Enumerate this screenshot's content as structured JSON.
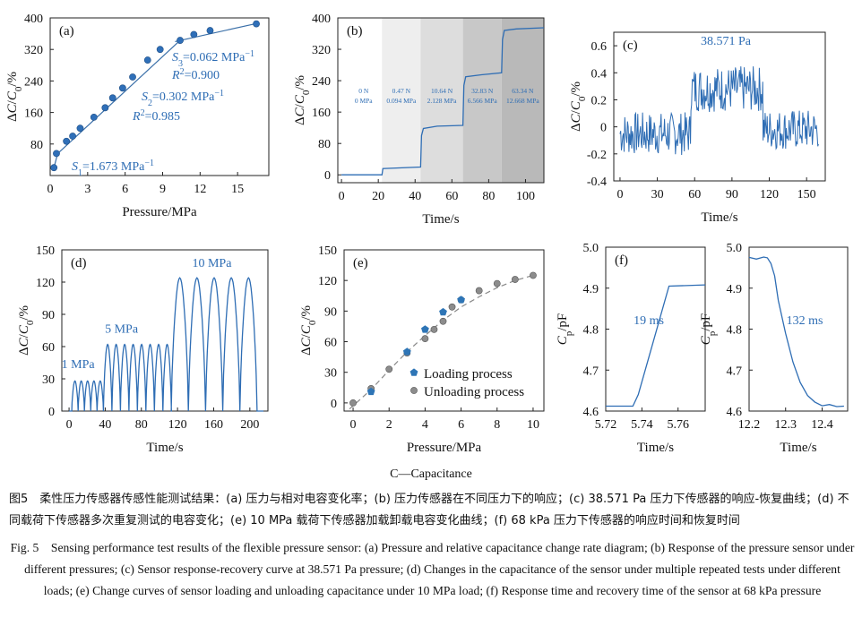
{
  "panels": [
    {
      "id": "a",
      "chart_data": {
        "type": "scatter",
        "panel_label": "(a)",
        "xlabel": "Pressure/MPa",
        "ylabel": "ΔC/C0/%",
        "xlim": [
          0,
          17.5
        ],
        "ylim": [
          0,
          400
        ],
        "xticks": [
          0,
          3,
          6,
          9,
          12,
          15
        ],
        "yticks": [
          80,
          160,
          240,
          320,
          400
        ],
        "points": [
          [
            0.3,
            20
          ],
          [
            0.5,
            56
          ],
          [
            1.3,
            87
          ],
          [
            1.8,
            100
          ],
          [
            2.4,
            120
          ],
          [
            3.5,
            148
          ],
          [
            4.4,
            172
          ],
          [
            5.0,
            197
          ],
          [
            5.8,
            222
          ],
          [
            6.6,
            250
          ],
          [
            7.8,
            293
          ],
          [
            8.8,
            320
          ],
          [
            10.4,
            343
          ],
          [
            11.5,
            358
          ],
          [
            12.8,
            368
          ],
          [
            16.5,
            385
          ]
        ],
        "fit_lines": [
          {
            "name": "S1",
            "x": [
              0.3,
              0.6
            ],
            "y": [
              20,
              56
            ]
          },
          {
            "name": "S2",
            "x": [
              0.6,
              10.4
            ],
            "y": [
              56,
              343
            ]
          },
          {
            "name": "S3",
            "x": [
              10.0,
              16.7
            ],
            "y": [
              340,
              387
            ]
          }
        ],
        "annotations": {
          "s1": {
            "sym": "S",
            "sub": "1",
            "text": "=1.673 MPa",
            "sup": "−1"
          },
          "s2": {
            "sym": "S",
            "sub": "2",
            "text": "=0.302 MPa",
            "sup": "−1"
          },
          "r2_2": {
            "sym": "R",
            "sup": "2",
            "text": "=0.985"
          },
          "s3": {
            "sym": "S",
            "sub": "3",
            "text": "=0.062 MPa",
            "sup": "−1"
          },
          "r2_3": {
            "sym": "R",
            "sup": "2",
            "text": "=0.900"
          }
        }
      }
    },
    {
      "id": "b",
      "chart_data": {
        "type": "line",
        "panel_label": "(b)",
        "xlabel": "Time/s",
        "ylabel": "ΔC/C0/%",
        "xlim": [
          -2,
          110
        ],
        "ylim": [
          -20,
          400
        ],
        "xticks": [
          0,
          20,
          40,
          60,
          80,
          100
        ],
        "yticks": [
          0,
          80,
          160,
          240,
          320,
          400
        ],
        "bands": [
          {
            "x0": 22,
            "x1": 43,
            "color": "#eeeeee"
          },
          {
            "x0": 43,
            "x1": 66,
            "color": "#dddddd"
          },
          {
            "x0": 66,
            "x1": 87,
            "color": "#c8c8c8"
          },
          {
            "x0": 87,
            "x1": 110,
            "color": "#b9b9b9"
          }
        ],
        "levels": [
          {
            "label1": "0 N",
            "label2": "0 MPa",
            "x": 12
          },
          {
            "label1": "0.47 N",
            "label2": "0.094 MPa",
            "x": 32.5
          },
          {
            "label1": "10.64 N",
            "label2": "2.128 MPa",
            "x": 54.5
          },
          {
            "label1": "32.83 N",
            "label2": "6.566 MPa",
            "x": 76.5
          },
          {
            "label1": "63.34 N",
            "label2": "12.668 MPa",
            "x": 98.5
          }
        ],
        "x": [
          0,
          22,
          22.5,
          43,
          43.5,
          44.5,
          52,
          66,
          66.5,
          67.5,
          76,
          87,
          87.5,
          88.5,
          95,
          110
        ],
        "y": [
          0,
          0,
          16,
          20,
          100,
          118,
          124,
          126,
          228,
          250,
          255,
          260,
          345,
          368,
          372,
          375
        ]
      }
    },
    {
      "id": "c",
      "chart_data": {
        "type": "line",
        "panel_label": "(c)",
        "xlabel": "Time/s",
        "ylabel": "ΔC/C0/%",
        "xlim": [
          -5,
          165
        ],
        "ylim": [
          -0.4,
          0.7
        ],
        "xticks": [
          0,
          30,
          60,
          90,
          120,
          150
        ],
        "yticks": [
          -0.4,
          -0.2,
          0,
          0.2,
          0.4,
          0.6
        ],
        "title_annotation": "38.571 Pa",
        "segments": [
          {
            "t0": 0,
            "t1": 57,
            "mean": -0.05,
            "noise": 0.16
          },
          {
            "t0": 57,
            "t1": 115,
            "mean": 0.28,
            "noise": 0.17
          },
          {
            "t0": 115,
            "t1": 160,
            "mean": -0.02,
            "noise": 0.15
          }
        ]
      }
    },
    {
      "id": "d",
      "chart_data": {
        "type": "line",
        "panel_label": "(d)",
        "xlabel": "Time/s",
        "ylabel": "ΔC/C0/%",
        "xlim": [
          -8,
          220
        ],
        "ylim": [
          0,
          150
        ],
        "xticks": [
          0,
          40,
          80,
          120,
          160,
          200
        ],
        "yticks": [
          0,
          30,
          60,
          90,
          120,
          150
        ],
        "groups": [
          {
            "label": "1 MPa",
            "start": 3,
            "period": 7,
            "count": 5,
            "amp": 28
          },
          {
            "label": "5 MPa",
            "start": 38,
            "period": 9.4,
            "count": 8,
            "amp": 62
          },
          {
            "label": "10 MPa",
            "start": 113,
            "period": 19,
            "count": 5,
            "amp": 124
          }
        ]
      }
    },
    {
      "id": "e",
      "chart_data": {
        "type": "scatter",
        "panel_label": "(e)",
        "xlabel": "Pressure/MPa",
        "ylabel": "ΔC/C0/%",
        "xlim": [
          -0.5,
          10.6
        ],
        "ylim": [
          -8,
          150
        ],
        "xticks": [
          0,
          2,
          4,
          6,
          8,
          10
        ],
        "yticks": [
          0,
          30,
          60,
          90,
          120,
          150
        ],
        "series": [
          {
            "name": "Loading process",
            "marker": "pentagon",
            "color": "#2e75b6",
            "x": [
              0,
              1,
              2,
              3,
              4,
              5,
              6,
              7,
              8,
              9,
              10
            ],
            "y": [
              0,
              11,
              33,
              50,
              72,
              89,
              101,
              110,
              116,
              121,
              125
            ]
          },
          {
            "name": "Unloading process",
            "marker": "circle",
            "color": "#8c8c8c",
            "x": [
              0,
              1,
              2,
              3,
              4,
              4.5,
              5,
              5.5,
              6,
              7,
              8,
              9,
              10
            ],
            "y": [
              0,
              14,
              33,
              49,
              63,
              72,
              80,
              94,
              101,
              110,
              117,
              121,
              125
            ]
          }
        ],
        "fit_curve": {
          "x": [
            -0.2,
            1,
            2,
            3,
            4,
            5,
            6,
            7,
            8,
            9,
            10
          ],
          "y": [
            -6,
            13,
            32,
            50,
            66,
            81,
            94,
            104,
            113,
            120,
            125
          ]
        }
      }
    },
    {
      "id": "f1",
      "chart_data": {
        "type": "line",
        "panel_label": "(f)",
        "xlabel": "Time/s",
        "ylabel": "Cp/pF",
        "xlim": [
          5.72,
          5.775
        ],
        "ylim": [
          4.6,
          5.0
        ],
        "xticks": [
          5.72,
          5.74,
          5.76
        ],
        "yticks": [
          4.6,
          4.7,
          4.8,
          4.9,
          5.0
        ],
        "annotation": "19 ms",
        "x": [
          5.72,
          5.735,
          5.738,
          5.755,
          5.775
        ],
        "y": [
          4.612,
          4.612,
          4.64,
          4.905,
          4.908
        ]
      }
    },
    {
      "id": "f2",
      "chart_data": {
        "type": "line",
        "panel_label": "",
        "xlabel": "Time/s",
        "ylabel": "Cp/pF",
        "xlim": [
          12.2,
          12.47
        ],
        "ylim": [
          4.6,
          5.0
        ],
        "xticks": [
          12.2,
          12.3,
          12.4
        ],
        "yticks": [
          4.6,
          4.7,
          4.8,
          4.9,
          5.0
        ],
        "annotation": "132 ms",
        "x": [
          12.2,
          12.22,
          12.24,
          12.25,
          12.26,
          12.27,
          12.28,
          12.3,
          12.32,
          12.34,
          12.36,
          12.38,
          12.4,
          12.42,
          12.44,
          12.46
        ],
        "y": [
          4.975,
          4.971,
          4.976,
          4.974,
          4.96,
          4.93,
          4.87,
          4.79,
          4.72,
          4.67,
          4.638,
          4.622,
          4.613,
          4.616,
          4.611,
          4.612
        ]
      }
    }
  ],
  "capacitance_note": "C—Capacitance",
  "caption_zh": "图5　柔性压力传感器传感性能测试结果：(a) 压力与相对电容变化率；(b) 压力传感器在不同压力下的响应；(c) 38.571 Pa 压力下传感器的响应-恢复曲线；(d) 不同载荷下传感器多次重复测试的电容变化；(e) 10 MPa 载荷下传感器加载卸载电容变化曲线；(f) 68 kPa 压力下传感器的响应时间和恢复时间",
  "caption_en": "Fig. 5　Sensing performance test results of the flexible pressure sensor: (a) Pressure and relative capacitance change rate diagram; (b) Response of the pressure sensor under different pressures; (c) Sensor response-recovery curve at 38.571 Pa pressure; (d) Changes in the capacitance of the sensor under multiple repeated tests under different loads; (e) Change curves of sensor loading and unloading capacitance under 10 MPa load; (f) Response time and recovery time of the sensor at 68 kPa pressure",
  "colors": {
    "line": "#2e6db4",
    "marker": "#2f6fb8",
    "fill_b": [
      "#eeeeee",
      "#dddddd",
      "#c8c8c8",
      "#b9b9b9"
    ]
  }
}
